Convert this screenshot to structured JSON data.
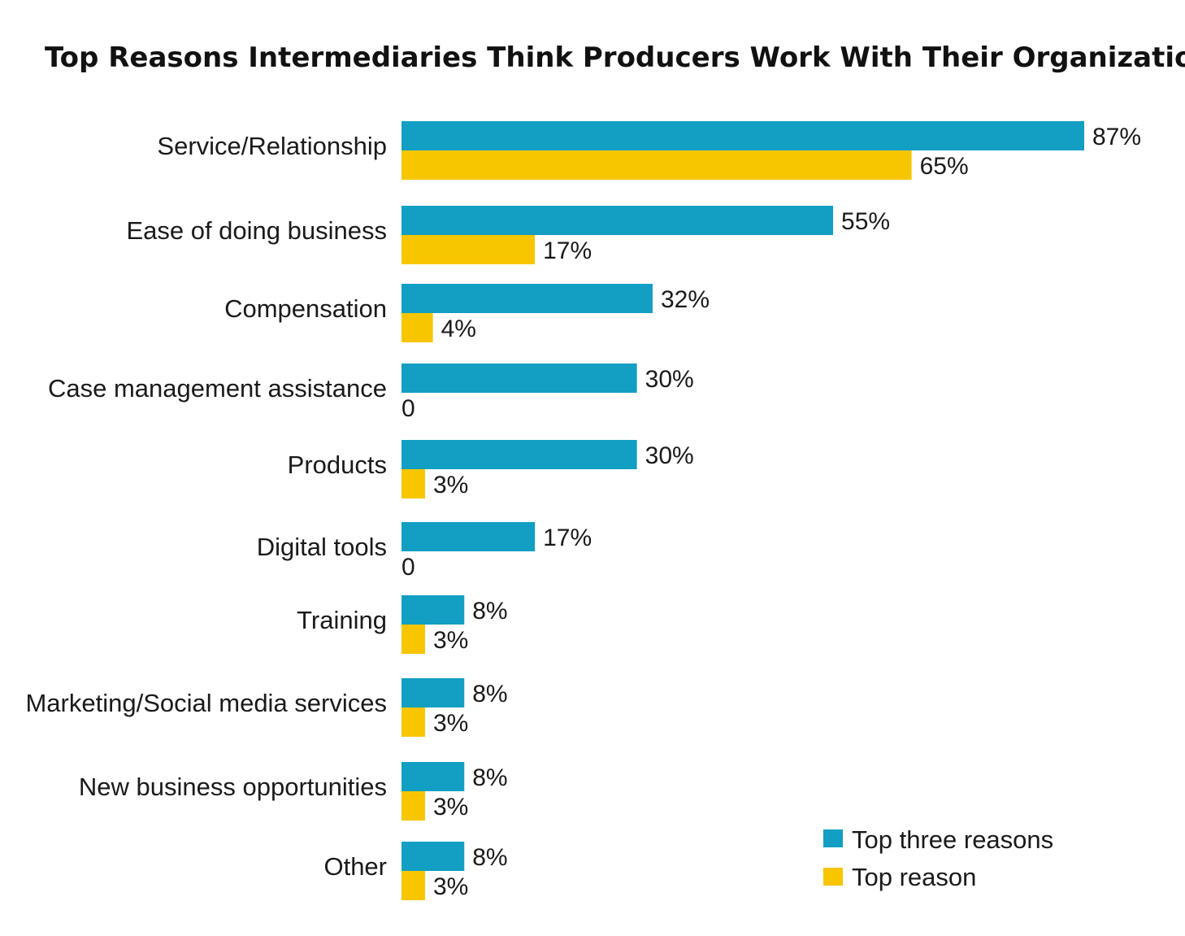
{
  "colors": {
    "top_three": "#139EC3",
    "top_reason": "#F7C600"
  },
  "chart_data": {
    "type": "bar",
    "orientation": "horizontal",
    "title": "Top Reasons Intermediaries Think Producers Work With Their Organizations",
    "xlabel": "",
    "ylabel": "",
    "xlim": [
      0,
      100
    ],
    "grid": false,
    "legend_position": "bottom-right",
    "categories": [
      "Service/Relationship",
      "Ease of doing business",
      "Compensation",
      "Case management assistance",
      "Products",
      "Digital tools",
      "Training",
      "Marketing/Social media services",
      "New business opportunities",
      "Other"
    ],
    "series": [
      {
        "name": "Top three reasons",
        "values": [
          87,
          55,
          32,
          30,
          30,
          17,
          8,
          8,
          8,
          8
        ],
        "labels": [
          "87%",
          "55%",
          "32%",
          "30%",
          "30%",
          "17%",
          "8%",
          "8%",
          "8%",
          "8%"
        ]
      },
      {
        "name": "Top reason",
        "values": [
          65,
          17,
          4,
          0,
          3,
          0,
          3,
          3,
          3,
          3
        ],
        "labels": [
          "65%",
          "17%",
          "4%",
          "0",
          "3%",
          "0",
          "3%",
          "3%",
          "3%",
          "3%"
        ]
      }
    ]
  }
}
